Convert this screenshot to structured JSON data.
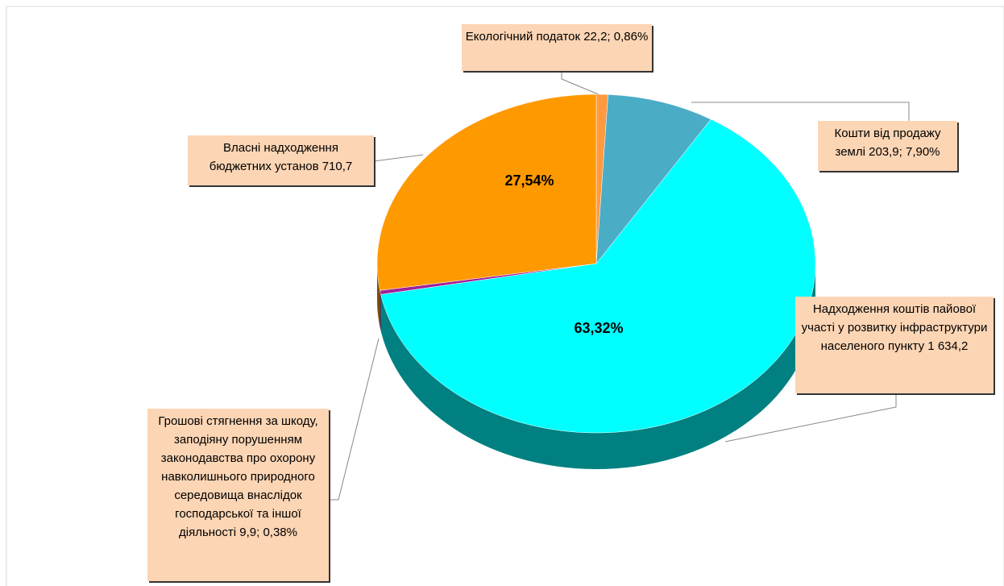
{
  "chart_data": {
    "type": "pie3d",
    "labels": [
      "Екологічний податок 22,2; 0,86%",
      "Кошти від продажу землі 203,9; 7,90%",
      "Надходження коштів пайової участі у розвитку інфраструктури населеного пункту 1 634,2",
      "Грошові стягнення за шкоду, заподіяну порушенням законодавства про охорону навколишнього природного середовища внаслідок господарської та іншої діяльності 9,9; 0,38%",
      "Власні надходження бюджетних установ 710,7"
    ],
    "values": [
      0.86,
      7.9,
      63.32,
      0.38,
      27.54
    ],
    "value_labels": [
      null,
      null,
      "63,32%",
      null,
      "27,54%"
    ],
    "colors": [
      "#ff9a40",
      "#4bacc6",
      "#00ffff",
      "#a0209a",
      "#ff9900"
    ]
  }
}
